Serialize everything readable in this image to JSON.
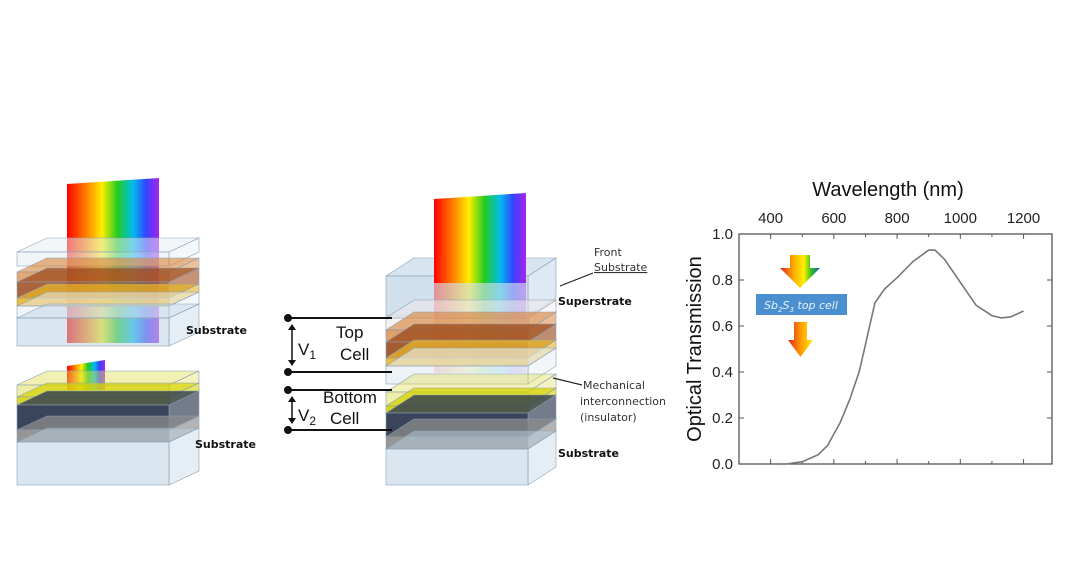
{
  "left_diagram": {
    "top_stack_label": "Substrate",
    "bottom_stack_label": "Substrate"
  },
  "circuit": {
    "v1": "V",
    "v1_sub": "1",
    "v2": "V",
    "v2_sub": "2",
    "top_cell": [
      "Top",
      "Cell"
    ],
    "bottom_cell": [
      "Bottom",
      "Cell"
    ]
  },
  "middle_diagram": {
    "front_substrate": [
      "Front",
      "Substrate"
    ],
    "superstrate": "Superstrate",
    "mechanical": [
      "Mechanical",
      "interconnection",
      "(insulator)"
    ],
    "substrate": "Substrate"
  },
  "colors": {
    "glass": "#bcd3e6",
    "brown": "#9c4a1c",
    "orange": "#d98a45",
    "gold": "#e8b52a",
    "dark": "#2f3b52",
    "yellow": "#e1de5a",
    "curve": "#777777",
    "inset_box": "#4a90d0"
  },
  "chart_data": {
    "type": "line",
    "title": "",
    "xlabel": "Wavelength (nm)",
    "ylabel": "Optical Transmission",
    "xlim": [
      300,
      1290
    ],
    "ylim": [
      0,
      1.0
    ],
    "xticks": [
      400,
      600,
      800,
      1000,
      1200
    ],
    "yticks": [
      "0.0",
      "0.2",
      "0.4",
      "0.6",
      "0.8",
      "1.0"
    ],
    "x_axis_position": "top",
    "grid": false,
    "annotation": "Sb2S3 top cell",
    "series": [
      {
        "name": "Sb2S3 top cell transmission",
        "x": [
          420,
          450,
          500,
          550,
          580,
          600,
          620,
          650,
          680,
          700,
          710,
          730,
          760,
          800,
          850,
          900,
          920,
          950,
          1000,
          1050,
          1100,
          1130,
          1160,
          1200
        ],
        "y": [
          0,
          0,
          0.01,
          0.04,
          0.08,
          0.13,
          0.18,
          0.28,
          0.4,
          0.52,
          0.58,
          0.7,
          0.76,
          0.81,
          0.88,
          0.93,
          0.93,
          0.89,
          0.79,
          0.69,
          0.645,
          0.635,
          0.64,
          0.665
        ]
      }
    ]
  }
}
